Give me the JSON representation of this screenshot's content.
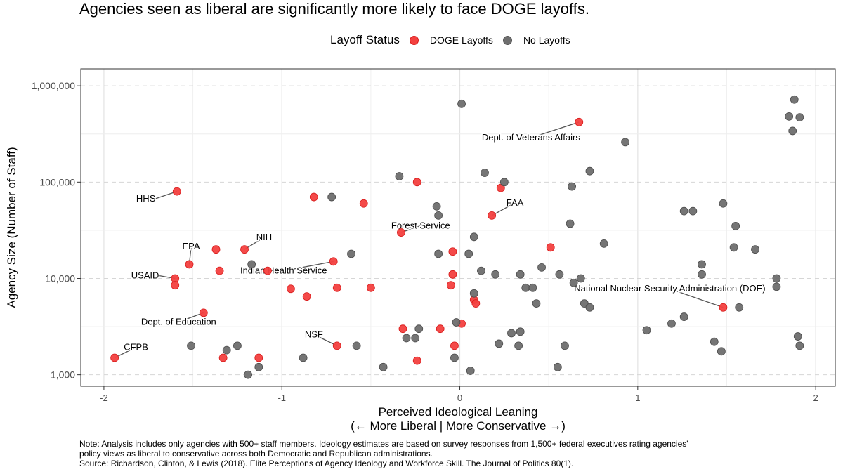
{
  "chart_data": {
    "type": "scatter",
    "title": "Agencies seen as liberal are significantly more likely to face DOGE layoffs.",
    "xlabel": "Perceived Ideological Leaning",
    "xlabel2": "(← More Liberal | More Conservative →)",
    "ylabel": "Agency Size (Number of Staff)",
    "xlim": [
      -2.13,
      2.11
    ],
    "ylim": [
      760,
      1500000
    ],
    "yscale": "log",
    "x_ticks": [
      -2,
      -1,
      0,
      1,
      2
    ],
    "x_tick_labels": [
      "-2",
      "-1",
      "0",
      "1",
      "2"
    ],
    "y_ticks": [
      1000,
      10000,
      100000,
      1000000
    ],
    "y_tick_labels": [
      "1,000",
      "10,000",
      "100,000",
      "1,000,000"
    ],
    "grid": true,
    "legend": {
      "title": "Layoff Status",
      "position": "top",
      "entries": [
        {
          "label": "DOGE Layoffs",
          "color": "#f3403f"
        },
        {
          "label": "No Layoffs",
          "color": "#6e6e6e"
        }
      ]
    },
    "series": [
      {
        "name": "DOGE Layoffs",
        "color": "#f3403f",
        "points": [
          [
            -1.94,
            1500
          ],
          [
            -1.59,
            80000
          ],
          [
            -1.52,
            14000
          ],
          [
            -1.6,
            10000
          ],
          [
            -1.6,
            8500
          ],
          [
            -1.44,
            4400
          ],
          [
            -1.37,
            20000
          ],
          [
            -1.35,
            12000
          ],
          [
            -1.21,
            20000
          ],
          [
            -1.08,
            12000
          ],
          [
            -1.33,
            1500
          ],
          [
            -1.13,
            1500
          ],
          [
            -0.82,
            70000
          ],
          [
            -0.95,
            7800
          ],
          [
            -0.86,
            6500
          ],
          [
            -0.71,
            15000
          ],
          [
            -0.69,
            8000
          ],
          [
            -0.54,
            60000
          ],
          [
            -0.5,
            8000
          ],
          [
            -0.69,
            2000
          ],
          [
            -0.33,
            30000
          ],
          [
            -0.32,
            3000
          ],
          [
            -0.24,
            100000
          ],
          [
            -0.24,
            1400
          ],
          [
            -0.11,
            3000
          ],
          [
            -0.04,
            19000
          ],
          [
            -0.04,
            11000
          ],
          [
            -0.05,
            8500
          ],
          [
            -0.03,
            2000
          ],
          [
            0.01,
            3400
          ],
          [
            0.08,
            6000
          ],
          [
            0.09,
            5500
          ],
          [
            0.23,
            87000
          ],
          [
            0.18,
            45000
          ],
          [
            0.51,
            21000
          ],
          [
            0.67,
            420000
          ],
          [
            1.48,
            5000
          ]
        ]
      },
      {
        "name": "No Layoffs",
        "color": "#6e6e6e",
        "points": [
          [
            -1.51,
            2000
          ],
          [
            -1.31,
            1800
          ],
          [
            -1.25,
            2000
          ],
          [
            -1.19,
            1000
          ],
          [
            -1.13,
            1200
          ],
          [
            -1.17,
            14000
          ],
          [
            -0.88,
            1500
          ],
          [
            -0.72,
            70000
          ],
          [
            -0.61,
            18000
          ],
          [
            -0.58,
            2000
          ],
          [
            -0.43,
            1200
          ],
          [
            -0.34,
            115000
          ],
          [
            -0.3,
            2400
          ],
          [
            -0.25,
            2400
          ],
          [
            -0.23,
            3000
          ],
          [
            -0.13,
            56000
          ],
          [
            -0.12,
            45000
          ],
          [
            -0.12,
            18000
          ],
          [
            -0.03,
            1500
          ],
          [
            -0.02,
            3500
          ],
          [
            0.01,
            650000
          ],
          [
            0.05,
            18000
          ],
          [
            0.06,
            1100
          ],
          [
            0.08,
            27000
          ],
          [
            0.08,
            7000
          ],
          [
            0.12,
            12000
          ],
          [
            0.14,
            125000
          ],
          [
            0.2,
            11000
          ],
          [
            0.22,
            2100
          ],
          [
            0.25,
            100000
          ],
          [
            0.29,
            2700
          ],
          [
            0.33,
            2000
          ],
          [
            0.34,
            2800
          ],
          [
            0.34,
            11000
          ],
          [
            0.37,
            8000
          ],
          [
            0.41,
            8000
          ],
          [
            0.43,
            5500
          ],
          [
            0.46,
            13000
          ],
          [
            0.55,
            1200
          ],
          [
            0.56,
            11000
          ],
          [
            0.59,
            2000
          ],
          [
            0.62,
            37000
          ],
          [
            0.63,
            90000
          ],
          [
            0.64,
            9000
          ],
          [
            0.68,
            10000
          ],
          [
            0.7,
            5500
          ],
          [
            0.73,
            5000
          ],
          [
            0.73,
            130000
          ],
          [
            0.81,
            23000
          ],
          [
            0.93,
            260000
          ],
          [
            1.05,
            2900
          ],
          [
            1.19,
            3400
          ],
          [
            1.26,
            4000
          ],
          [
            1.26,
            50000
          ],
          [
            1.31,
            50000
          ],
          [
            1.36,
            14000
          ],
          [
            1.36,
            11000
          ],
          [
            1.43,
            2200
          ],
          [
            1.47,
            1750
          ],
          [
            1.48,
            60000
          ],
          [
            1.54,
            21000
          ],
          [
            1.55,
            35000
          ],
          [
            1.57,
            5000
          ],
          [
            1.66,
            20000
          ],
          [
            1.78,
            10000
          ],
          [
            1.78,
            8200
          ],
          [
            1.85,
            480000
          ],
          [
            1.87,
            340000
          ],
          [
            1.88,
            720000
          ],
          [
            1.91,
            470000
          ],
          [
            1.9,
            2500
          ],
          [
            1.91,
            2000
          ]
        ]
      }
    ],
    "annotations": [
      {
        "text": "CFPB",
        "x": -1.94,
        "y": 1500,
        "tx": -1.82,
        "ty": 1800,
        "anchor": "middle"
      },
      {
        "text": "HHS",
        "x": -1.59,
        "y": 80000,
        "tx": -1.71,
        "ty": 63000,
        "anchor": "end"
      },
      {
        "text": "EPA",
        "x": -1.52,
        "y": 14000,
        "tx": -1.51,
        "ty": 20000,
        "anchor": "middle"
      },
      {
        "text": "USAID",
        "x": -1.6,
        "y": 10000,
        "tx": -1.69,
        "ty": 10000,
        "anchor": "end"
      },
      {
        "text": "Dept. of Education",
        "x": -1.44,
        "y": 4400,
        "tx": -1.58,
        "ty": 3300,
        "anchor": "middle"
      },
      {
        "text": "NIH",
        "x": -1.21,
        "y": 20000,
        "tx": -1.1,
        "ty": 25000,
        "anchor": "middle"
      },
      {
        "text": "Indian Health Service",
        "x": -0.71,
        "y": 15000,
        "tx": -0.99,
        "ty": 11200,
        "anchor": "middle"
      },
      {
        "text": "NSF",
        "x": -0.69,
        "y": 2000,
        "tx": -0.82,
        "ty": 2450,
        "anchor": "middle"
      },
      {
        "text": "Forest Service",
        "x": -0.33,
        "y": 30000,
        "tx": -0.22,
        "ty": 33000,
        "anchor": "middle"
      },
      {
        "text": "FAA",
        "x": 0.18,
        "y": 45000,
        "tx": 0.31,
        "ty": 57000,
        "anchor": "middle"
      },
      {
        "text": "Dept. of Veterans Affairs",
        "x": 0.67,
        "y": 420000,
        "tx": 0.4,
        "ty": 270000,
        "anchor": "middle"
      },
      {
        "text": "National Nuclear Security Administration (DOE)",
        "x": 1.48,
        "y": 5000,
        "tx": 1.18,
        "ty": 7300,
        "anchor": "middle"
      }
    ]
  },
  "note": {
    "line1": "Note: Analysis includes only agencies with 500+ staff members. Ideology estimates are based on survey responses from 1,500+ federal executives rating agencies'",
    "line2": "policy views as liberal to conservative across both Democratic and Republican administrations.",
    "line3": "Source: Richardson, Clinton, & Lewis (2018). Elite Perceptions of Agency Ideology and Workforce Skill. The Journal of Politics 80(1)."
  }
}
